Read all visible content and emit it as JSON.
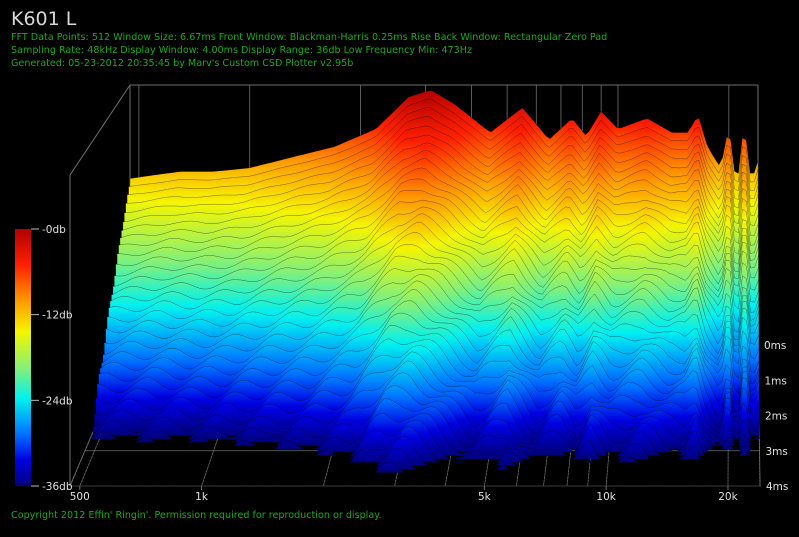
{
  "title": "K601 L",
  "info_lines": [
    "FFT Data Points: 512   Window Size: 6.67ms    Front Window: Blackman-Harris 0.25ms Rise    Back Window: Rectangular Zero Pad",
    "Sampling Rate: 48kHz   Display Window: 4.00ms    Display Range: 36db   Low Frequency Min: 473Hz",
    "Generated: 05-23-2012 20:35:45 by Marv's Custom CSD Plotter v2.95b"
  ],
  "copyright": "Copyright 2012 Effin' Ringin'. Permission required for reproduction or display.",
  "colors": {
    "background": "#000000",
    "info_text": "#21a621",
    "grid": "#6e6e6e"
  },
  "chart_data": {
    "type": "area",
    "subtype": "cumulative-spectral-decay-waterfall",
    "x_axis": {
      "scale": "log",
      "unit": "Hz",
      "range": [
        473,
        24000
      ],
      "tick_labels": [
        {
          "label": "500",
          "value": 500
        },
        {
          "label": "1k",
          "value": 1000
        },
        {
          "label": "5k",
          "value": 5000
        },
        {
          "label": "10k",
          "value": 10000
        },
        {
          "label": "20k",
          "value": 20000
        }
      ],
      "minor_ticks": [
        2000,
        3000,
        4000,
        6000,
        7000,
        8000,
        9000
      ]
    },
    "z_axis": {
      "unit": "ms",
      "range": [
        0,
        4
      ],
      "tick_labels": [
        {
          "label": "0ms",
          "value": 0
        },
        {
          "label": "1ms",
          "value": 1
        },
        {
          "label": "2ms",
          "value": 2
        },
        {
          "label": "3ms",
          "value": 3
        },
        {
          "label": "4ms",
          "value": 4
        }
      ]
    },
    "y_axis": {
      "unit": "db",
      "range": [
        -36,
        0
      ],
      "color_scale": "jet",
      "tick_labels": [
        {
          "label": "-0db",
          "value": 0
        },
        {
          "label": "-12db",
          "value": -12
        },
        {
          "label": "-24db",
          "value": -24
        },
        {
          "label": "-36db",
          "value": -36
        }
      ]
    },
    "grid": true,
    "front_slice_0ms": {
      "freq": [
        473,
        550,
        650,
        800,
        1000,
        1300,
        1700,
        2200,
        2700,
        3100,
        3600,
        4500,
        5500,
        6500,
        7500,
        8200,
        9000,
        10000,
        12000,
        14000,
        15500,
        16500,
        17500,
        19000,
        20000,
        21000,
        22000,
        23000,
        24000
      ],
      "db": [
        -12.5,
        -12,
        -11.5,
        -11.5,
        -11,
        -9.5,
        -8,
        -5.5,
        -1,
        0,
        -2,
        -6,
        -2.5,
        -7,
        -4,
        -6.5,
        -3,
        -5.5,
        -4,
        -6,
        -6,
        -3.5,
        -8,
        -11,
        -5,
        -14,
        -4.5,
        -13,
        -10
      ]
    },
    "decay_slices": [
      {
        "t_ms": 0.25,
        "freq": [
          473,
          1000,
          2000,
          3000,
          5000,
          10000,
          20000,
          24000
        ],
        "db": [
          -13,
          -12,
          -8,
          -3,
          -5,
          -7,
          -9,
          -11
        ]
      },
      {
        "t_ms": 0.5,
        "freq": [
          473,
          1000,
          2000,
          3000,
          5000,
          10000,
          20000,
          24000
        ],
        "db": [
          -15,
          -14,
          -12,
          -9,
          -12,
          -13,
          -15,
          -16
        ]
      },
      {
        "t_ms": 1.0,
        "freq": [
          473,
          1000,
          2000,
          3000,
          5000,
          10000,
          20000,
          24000
        ],
        "db": [
          -20,
          -18,
          -17,
          -15,
          -19,
          -22,
          -24,
          -25
        ]
      },
      {
        "t_ms": 2.0,
        "freq": [
          473,
          1000,
          2000,
          3000,
          5000,
          10000,
          20000,
          24000
        ],
        "db": [
          -26,
          -28,
          -29,
          -30,
          -31,
          -32,
          -33,
          -34
        ]
      },
      {
        "t_ms": 4.0,
        "freq": [
          473,
          1000,
          2000,
          3000,
          5000,
          10000,
          20000,
          24000
        ],
        "db": [
          -33,
          -36,
          -36,
          -36,
          -36,
          -36,
          -36,
          -36
        ]
      }
    ]
  }
}
